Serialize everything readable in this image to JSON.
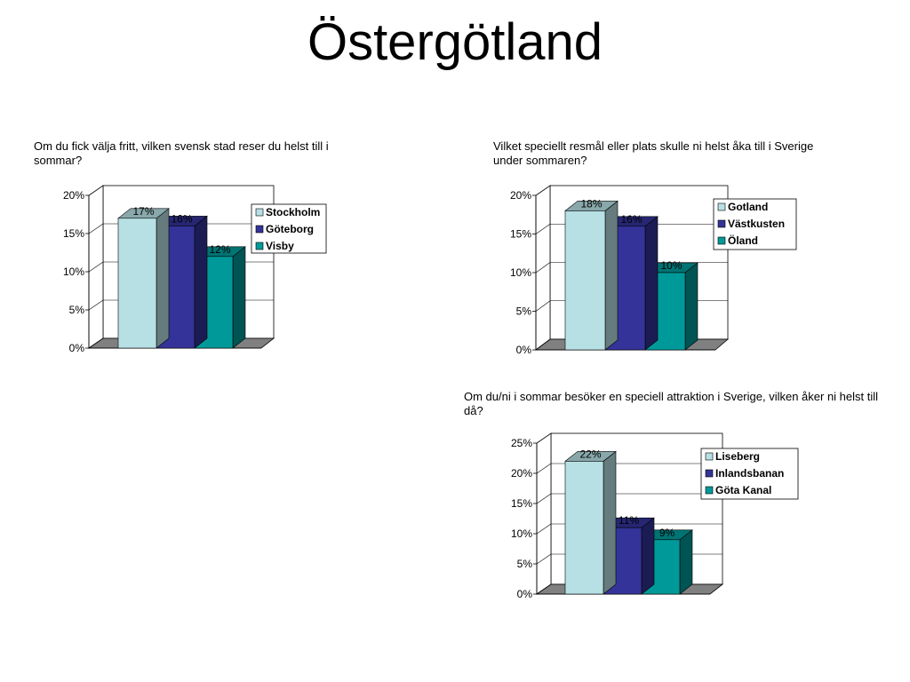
{
  "page": {
    "title": "Östergötland"
  },
  "chart_data": [
    {
      "type": "bar",
      "title": "Om du fick välja fritt, vilken svensk stad reser du helst till i sommar?",
      "categories": [
        "Stockholm",
        "Göteborg",
        "Visby"
      ],
      "values": [
        17,
        16,
        12
      ],
      "data_labels": [
        "17%",
        "16%",
        "12%"
      ],
      "ylim": [
        0,
        20
      ],
      "yticks": [
        "0%",
        "5%",
        "10%",
        "15%",
        "20%"
      ],
      "colors": [
        "#b7e0e4",
        "#333399",
        "#009999"
      ],
      "legend": "right",
      "grid": true
    },
    {
      "type": "bar",
      "title": "Vilket speciellt resmål eller plats skulle ni helst åka till i Sverige under sommaren?",
      "categories": [
        "Gotland",
        "Västkusten",
        "Öland"
      ],
      "values": [
        18,
        16,
        10
      ],
      "data_labels": [
        "18%",
        "16%",
        "10%"
      ],
      "ylim": [
        0,
        20
      ],
      "yticks": [
        "0%",
        "5%",
        "10%",
        "15%",
        "20%"
      ],
      "colors": [
        "#b7e0e4",
        "#333399",
        "#009999"
      ],
      "legend": "right",
      "grid": true
    },
    {
      "type": "bar",
      "title": "Om du/ni i sommar besöker en speciell attraktion i Sverige, vilken åker ni helst till då?",
      "categories": [
        "Liseberg",
        "Inlandsbanan",
        "Göta Kanal"
      ],
      "values": [
        22,
        11,
        9
      ],
      "data_labels": [
        "22%",
        "11%",
        "9%"
      ],
      "ylim": [
        0,
        25
      ],
      "yticks": [
        "0%",
        "5%",
        "10%",
        "15%",
        "20%",
        "25%"
      ],
      "colors": [
        "#b7e0e4",
        "#333399",
        "#009999"
      ],
      "legend": "right",
      "grid": true
    }
  ]
}
